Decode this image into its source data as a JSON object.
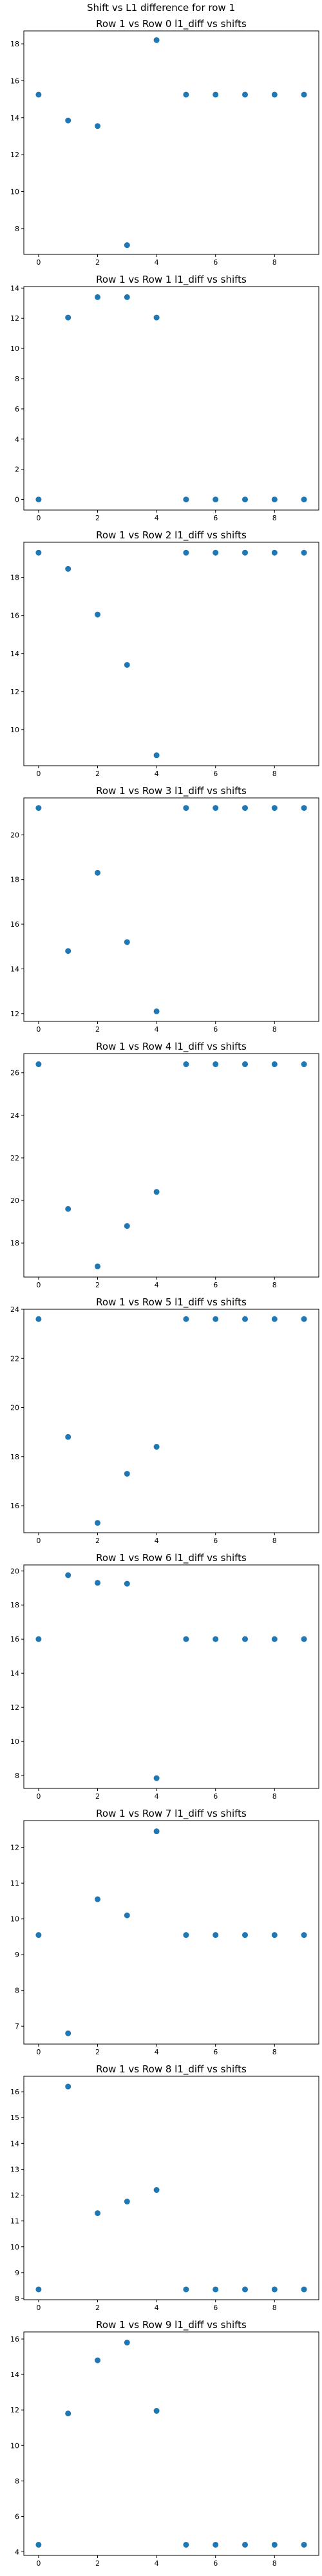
{
  "figure": {
    "suptitle": "Shift vs L1 difference for row 1"
  },
  "chart_data": [
    {
      "type": "scatter",
      "title": "Row 1 vs Row 0 l1_diff vs shifts",
      "x": [
        0,
        1,
        2,
        3,
        4,
        5,
        6,
        7,
        8,
        9
      ],
      "y": [
        15.25,
        13.85,
        13.55,
        7.1,
        18.2,
        15.25,
        15.25,
        15.25,
        15.25,
        15.25
      ],
      "xlim": [
        -0.5,
        9.5
      ],
      "ylim": [
        6.6,
        18.7
      ],
      "xticks": [
        0,
        2,
        4,
        6,
        8
      ],
      "yticks": [
        8,
        10,
        12,
        14,
        16,
        18
      ],
      "color": "#1f77b4",
      "grid": false
    },
    {
      "type": "scatter",
      "title": "Row 1 vs Row 1 l1_diff vs shifts",
      "x": [
        0,
        1,
        2,
        3,
        4,
        5,
        6,
        7,
        8,
        9
      ],
      "y": [
        0,
        12.05,
        13.4,
        13.4,
        12.05,
        0,
        0,
        0,
        0,
        0
      ],
      "xlim": [
        -0.5,
        9.5
      ],
      "ylim": [
        -0.7,
        14.1
      ],
      "xticks": [
        0,
        2,
        4,
        6,
        8
      ],
      "yticks": [
        0,
        2,
        4,
        6,
        8,
        10,
        12,
        14
      ],
      "color": "#1f77b4",
      "grid": false
    },
    {
      "type": "scatter",
      "title": "Row 1 vs Row 2 l1_diff vs shifts",
      "x": [
        0,
        1,
        2,
        3,
        4,
        5,
        6,
        7,
        8,
        9
      ],
      "y": [
        19.3,
        18.45,
        16.05,
        13.4,
        8.65,
        19.3,
        19.3,
        19.3,
        19.3,
        19.3
      ],
      "xlim": [
        -0.5,
        9.5
      ],
      "ylim": [
        8.1,
        19.85
      ],
      "xticks": [
        0,
        2,
        4,
        6,
        8
      ],
      "yticks": [
        10,
        12,
        14,
        16,
        18
      ],
      "color": "#1f77b4",
      "grid": false
    },
    {
      "type": "scatter",
      "title": "Row 1 vs Row 3 l1_diff vs shifts",
      "x": [
        0,
        1,
        2,
        3,
        4,
        5,
        6,
        7,
        8,
        9
      ],
      "y": [
        21.2,
        14.8,
        18.3,
        15.2,
        12.1,
        21.2,
        21.2,
        21.2,
        21.2,
        21.2
      ],
      "xlim": [
        -0.5,
        9.5
      ],
      "ylim": [
        11.65,
        21.65
      ],
      "xticks": [
        0,
        2,
        4,
        6,
        8
      ],
      "yticks": [
        12,
        14,
        16,
        18,
        20
      ],
      "color": "#1f77b4",
      "grid": false
    },
    {
      "type": "scatter",
      "title": "Row 1 vs Row 4 l1_diff vs shifts",
      "x": [
        0,
        1,
        2,
        3,
        4,
        5,
        6,
        7,
        8,
        9
      ],
      "y": [
        26.4,
        19.6,
        16.9,
        18.8,
        20.4,
        26.4,
        26.4,
        26.4,
        26.4,
        26.4
      ],
      "xlim": [
        -0.5,
        9.5
      ],
      "ylim": [
        16.4,
        26.9
      ],
      "xticks": [
        0,
        2,
        4,
        6,
        8
      ],
      "yticks": [
        18,
        20,
        22,
        24,
        26
      ],
      "color": "#1f77b4",
      "grid": false
    },
    {
      "type": "scatter",
      "title": "Row 1 vs Row 5 l1_diff vs shifts",
      "x": [
        0,
        1,
        2,
        3,
        4,
        5,
        6,
        7,
        8,
        9
      ],
      "y": [
        23.6,
        18.8,
        15.3,
        17.3,
        18.4,
        23.6,
        23.6,
        23.6,
        23.6,
        23.6
      ],
      "xlim": [
        -0.5,
        9.5
      ],
      "ylim": [
        14.9,
        24.0
      ],
      "xticks": [
        0,
        2,
        4,
        6,
        8
      ],
      "yticks": [
        16,
        18,
        20,
        22,
        24
      ],
      "color": "#1f77b4",
      "grid": false
    },
    {
      "type": "scatter",
      "title": "Row 1 vs Row 6 l1_diff vs shifts",
      "x": [
        0,
        1,
        2,
        3,
        4,
        5,
        6,
        7,
        8,
        9
      ],
      "y": [
        16.0,
        19.75,
        19.3,
        19.25,
        7.85,
        16.0,
        16.0,
        16.0,
        16.0,
        16.0
      ],
      "xlim": [
        -0.5,
        9.5
      ],
      "ylim": [
        7.25,
        20.35
      ],
      "xticks": [
        0,
        2,
        4,
        6,
        8
      ],
      "yticks": [
        8,
        10,
        12,
        14,
        16,
        18,
        20
      ],
      "color": "#1f77b4",
      "grid": false
    },
    {
      "type": "scatter",
      "title": "Row 1 vs Row 7 l1_diff vs shifts",
      "x": [
        0,
        1,
        2,
        3,
        4,
        5,
        6,
        7,
        8,
        9
      ],
      "y": [
        9.55,
        6.8,
        10.55,
        10.1,
        12.45,
        9.55,
        9.55,
        9.55,
        9.55,
        9.55
      ],
      "xlim": [
        -0.5,
        9.5
      ],
      "ylim": [
        6.5,
        12.75
      ],
      "xticks": [
        0,
        2,
        4,
        6,
        8
      ],
      "yticks": [
        7,
        8,
        9,
        10,
        11,
        12
      ],
      "color": "#1f77b4",
      "grid": false
    },
    {
      "type": "scatter",
      "title": "Row 1 vs Row 8 l1_diff vs shifts",
      "x": [
        0,
        1,
        2,
        3,
        4,
        5,
        6,
        7,
        8,
        9
      ],
      "y": [
        8.35,
        16.2,
        11.3,
        11.75,
        12.2,
        8.35,
        8.35,
        8.35,
        8.35,
        8.35
      ],
      "xlim": [
        -0.5,
        9.5
      ],
      "ylim": [
        7.95,
        16.6
      ],
      "xticks": [
        0,
        2,
        4,
        6,
        8
      ],
      "yticks": [
        8,
        9,
        10,
        11,
        12,
        13,
        14,
        15,
        16
      ],
      "color": "#1f77b4",
      "grid": false
    },
    {
      "type": "scatter",
      "title": "Row 1 vs Row 9 l1_diff vs shifts",
      "x": [
        0,
        1,
        2,
        3,
        4,
        5,
        6,
        7,
        8,
        9
      ],
      "y": [
        4.4,
        11.8,
        14.8,
        15.8,
        11.95,
        4.4,
        4.4,
        4.4,
        4.4,
        4.4
      ],
      "xlim": [
        -0.5,
        9.5
      ],
      "ylim": [
        3.8,
        16.4
      ],
      "xticks": [
        0,
        2,
        4,
        6,
        8
      ],
      "yticks": [
        4,
        6,
        8,
        10,
        12,
        14,
        16
      ],
      "color": "#1f77b4",
      "grid": false
    }
  ]
}
